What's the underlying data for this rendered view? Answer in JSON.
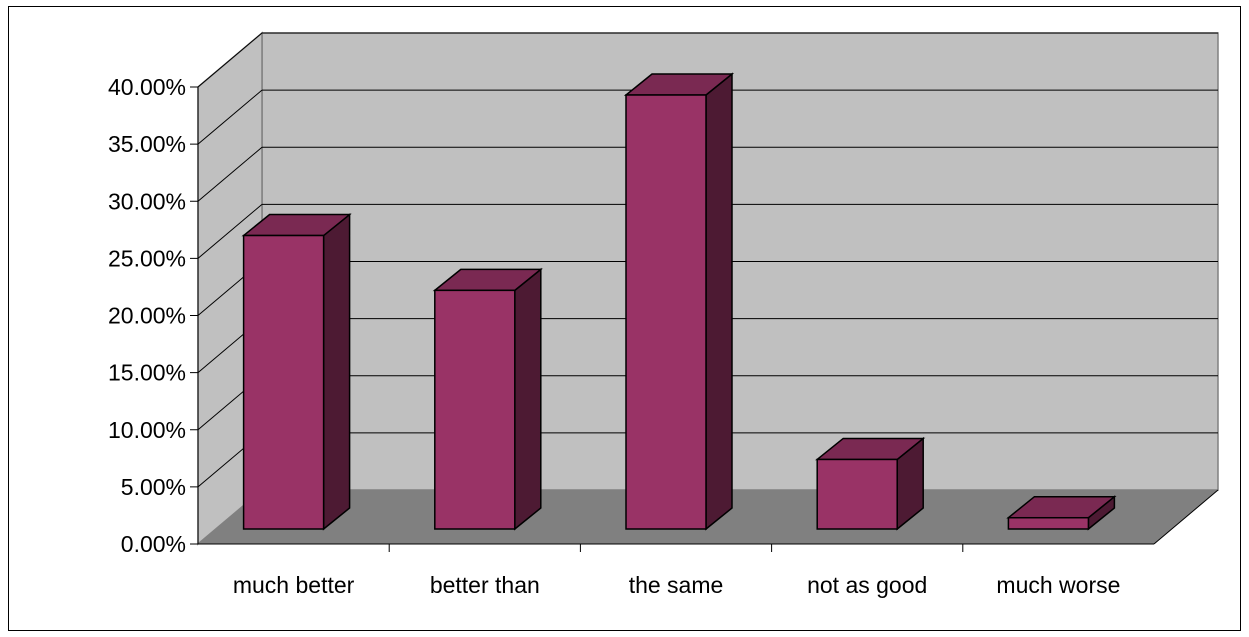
{
  "chart_data": {
    "type": "bar",
    "title": "",
    "xlabel": "",
    "ylabel": "",
    "categories": [
      "much better",
      "better than",
      "the same",
      "not as good",
      "much worse"
    ],
    "values": [
      27.0,
      22.2,
      39.3,
      7.4,
      2.3
    ],
    "ylim": [
      0,
      40
    ],
    "y_ticks": [
      "0.00%",
      "5.00%",
      "10.00%",
      "15.00%",
      "20.00%",
      "25.00%",
      "30.00%",
      "35.00%",
      "40.00%"
    ],
    "grid": true,
    "legend": "none",
    "style": "3d-column",
    "colors": {
      "bar_front": "#993366",
      "bar_side": "#4d1a33",
      "bar_top": "#7a2952",
      "wall": "#c0c0c0",
      "floor": "#808080",
      "gridline": "#000000"
    }
  }
}
